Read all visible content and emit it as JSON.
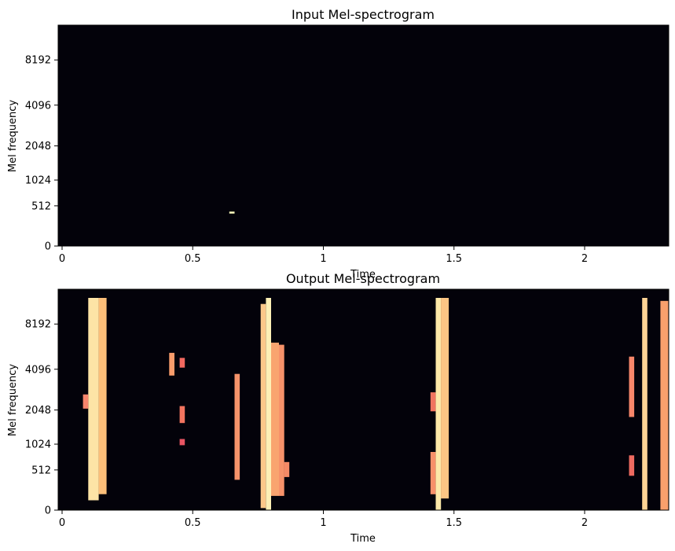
{
  "chart_data": [
    {
      "type": "heatmap",
      "title": "Input Mel-spectrogram",
      "xlabel": "Time",
      "ylabel": "Mel frequency",
      "xlim": [
        0,
        2.32
      ],
      "x_ticks": [
        "0",
        "0.5",
        "1",
        "1.5",
        "2"
      ],
      "y_ticks": [
        "0",
        "512",
        "1024",
        "2048",
        "4096",
        "8192"
      ],
      "y_scale": "mel",
      "colormap": "magma",
      "background_color": "#03020a",
      "events": [
        {
          "t_start": 0.64,
          "t_end": 0.66,
          "freq_low": 390,
          "freq_high": 420,
          "intensity": 1.0,
          "color": "#fcfdbf"
        }
      ]
    },
    {
      "type": "heatmap",
      "title": "Output Mel-spectrogram",
      "xlabel": "Time",
      "ylabel": "Mel frequency",
      "xlim": [
        0,
        2.32
      ],
      "x_ticks": [
        "0",
        "0.5",
        "1",
        "1.5",
        "2"
      ],
      "y_ticks": [
        "0",
        "512",
        "1024",
        "2048",
        "4096",
        "8192"
      ],
      "y_scale": "mel",
      "colormap": "magma",
      "background_color": "#03020a",
      "events": [
        {
          "t_start": 0.1,
          "t_end": 0.14,
          "freq_low": 100,
          "freq_high": 12000,
          "color": "#fde4a6"
        },
        {
          "t_start": 0.14,
          "t_end": 0.17,
          "freq_low": 170,
          "freq_high": 12000,
          "color": "#fcbf7a"
        },
        {
          "t_start": 0.08,
          "t_end": 0.1,
          "freq_low": 2100,
          "freq_high": 2700,
          "color": "#f7856c"
        },
        {
          "t_start": 0.41,
          "t_end": 0.43,
          "freq_low": 3700,
          "freq_high": 5300,
          "color": "#f99c6b"
        },
        {
          "t_start": 0.45,
          "t_end": 0.47,
          "freq_low": 4200,
          "freq_high": 4900,
          "color": "#f2685f"
        },
        {
          "t_start": 0.45,
          "t_end": 0.47,
          "freq_low": 1600,
          "freq_high": 2200,
          "color": "#f2745f"
        },
        {
          "t_start": 0.45,
          "t_end": 0.47,
          "freq_low": 1000,
          "freq_high": 1150,
          "color": "#e85563"
        },
        {
          "t_start": 0.66,
          "t_end": 0.68,
          "freq_low": 360,
          "freq_high": 3800,
          "color": "#f6936a"
        },
        {
          "t_start": 0.76,
          "t_end": 0.78,
          "freq_low": 20,
          "freq_high": 11000,
          "color": "#fcc88a"
        },
        {
          "t_start": 0.78,
          "t_end": 0.8,
          "freq_low": 0,
          "freq_high": 12000,
          "color": "#fef0b6"
        },
        {
          "t_start": 0.8,
          "t_end": 0.83,
          "freq_low": 150,
          "freq_high": 6200,
          "color": "#f9a46f"
        },
        {
          "t_start": 0.83,
          "t_end": 0.85,
          "freq_low": 150,
          "freq_high": 6000,
          "color": "#f7926a"
        },
        {
          "t_start": 0.85,
          "t_end": 0.87,
          "freq_low": 400,
          "freq_high": 650,
          "color": "#f58a66"
        },
        {
          "t_start": 1.41,
          "t_end": 1.43,
          "freq_low": 170,
          "freq_high": 850,
          "color": "#f7906a"
        },
        {
          "t_start": 1.41,
          "t_end": 1.43,
          "freq_low": 2000,
          "freq_high": 2800,
          "color": "#f0745f"
        },
        {
          "t_start": 1.43,
          "t_end": 1.45,
          "freq_low": 0,
          "freq_high": 12000,
          "color": "#fde8a8"
        },
        {
          "t_start": 1.45,
          "t_end": 1.48,
          "freq_low": 120,
          "freq_high": 12000,
          "color": "#fcc584"
        },
        {
          "t_start": 2.17,
          "t_end": 2.19,
          "freq_low": 1800,
          "freq_high": 5000,
          "color": "#f7866a"
        },
        {
          "t_start": 2.17,
          "t_end": 2.19,
          "freq_low": 420,
          "freq_high": 780,
          "color": "#ee6a60"
        },
        {
          "t_start": 2.22,
          "t_end": 2.24,
          "freq_low": 0,
          "freq_high": 12000,
          "color": "#fdd495"
        },
        {
          "t_start": 2.29,
          "t_end": 2.32,
          "freq_low": 0,
          "freq_high": 11500,
          "color": "#f9a06c"
        }
      ]
    }
  ]
}
